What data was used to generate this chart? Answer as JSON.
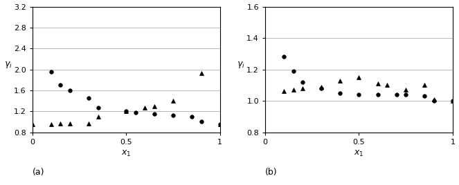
{
  "plot_a": {
    "label": "(a)",
    "xlabel": "x_1",
    "ylabel": "γ_i",
    "ylim": [
      0.8,
      3.2
    ],
    "xlim": [
      0,
      1
    ],
    "yticks": [
      0.8,
      1.2,
      1.6,
      2.0,
      2.4,
      2.8,
      3.2
    ],
    "xticks": [
      0,
      0.5,
      1
    ],
    "xticklabels": [
      "0",
      "0.5",
      "1"
    ],
    "circles_x": [
      0.1,
      0.15,
      0.2,
      0.3,
      0.35,
      0.5,
      0.55,
      0.65,
      0.75,
      0.85,
      0.9,
      1.0
    ],
    "circles_y": [
      1.95,
      1.7,
      1.6,
      1.45,
      1.27,
      1.2,
      1.18,
      1.15,
      1.13,
      1.1,
      1.0,
      0.95
    ],
    "triangles_x": [
      0.0,
      0.1,
      0.15,
      0.2,
      0.3,
      0.35,
      0.5,
      0.6,
      0.65,
      0.75,
      0.9,
      1.0
    ],
    "triangles_y": [
      0.95,
      0.95,
      0.97,
      0.97,
      0.97,
      1.1,
      1.2,
      1.27,
      1.3,
      1.4,
      1.93,
      0.95
    ]
  },
  "plot_b": {
    "label": "(b)",
    "xlabel": "x_1",
    "ylabel": "γ_i",
    "ylim": [
      0.8,
      1.6
    ],
    "xlim": [
      0,
      1
    ],
    "yticks": [
      0.8,
      1.0,
      1.2,
      1.4,
      1.6
    ],
    "xticks": [
      0,
      0.5,
      1
    ],
    "xticklabels": [
      "0",
      "0.5",
      "1"
    ],
    "circles_x": [
      0.1,
      0.15,
      0.2,
      0.3,
      0.4,
      0.5,
      0.6,
      0.7,
      0.75,
      0.85,
      0.9,
      1.0
    ],
    "circles_y": [
      1.28,
      1.19,
      1.12,
      1.08,
      1.05,
      1.04,
      1.04,
      1.04,
      1.04,
      1.03,
      1.0,
      1.0
    ],
    "triangles_x": [
      0.1,
      0.15,
      0.2,
      0.3,
      0.4,
      0.5,
      0.6,
      0.65,
      0.75,
      0.85,
      0.9,
      1.0
    ],
    "triangles_y": [
      1.06,
      1.07,
      1.08,
      1.09,
      1.13,
      1.15,
      1.11,
      1.1,
      1.07,
      1.1,
      1.01,
      1.0
    ]
  },
  "marker_size": 4,
  "marker_color": "black",
  "grid_color": "#b0b0b0",
  "grid_lw": 0.6
}
